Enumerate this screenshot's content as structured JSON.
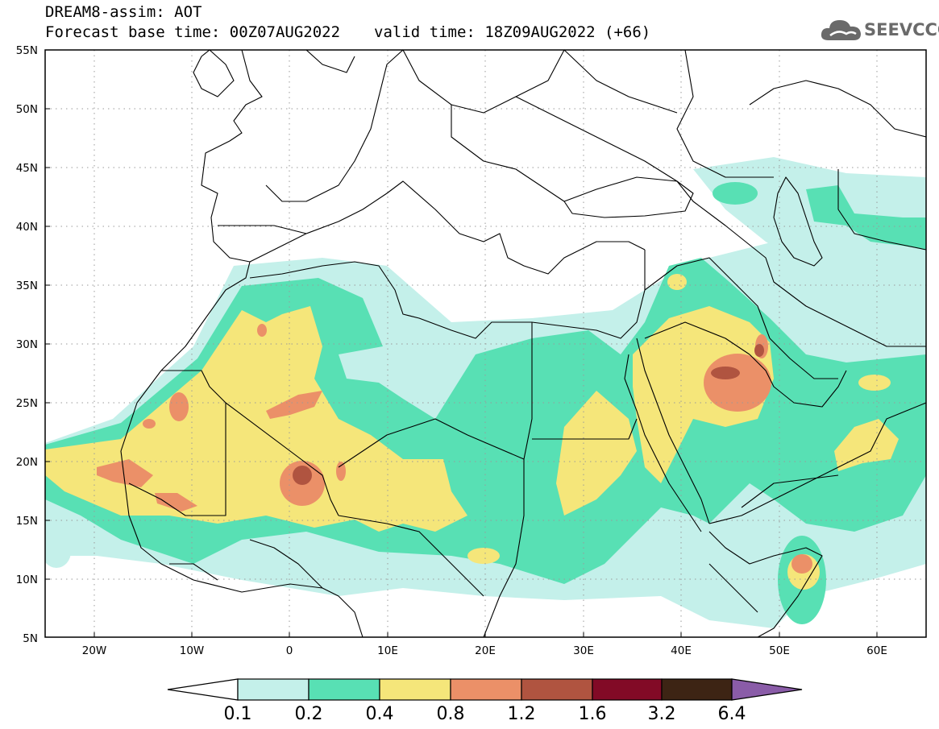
{
  "header": {
    "model_line": "DREAM8-assim: AOT",
    "base_time": "Forecast base time: 00Z07AUG2022",
    "valid_time": "valid time: 18Z09AUG2022 (+66)"
  },
  "logo": {
    "text": "SEEVCCC",
    "icon": "cloud-icon",
    "color": "#6a6a6a"
  },
  "map": {
    "lon_range": [
      -25,
      65
    ],
    "lat_range": [
      5,
      55
    ],
    "lat_labels": [
      "55N",
      "50N",
      "45N",
      "40N",
      "35N",
      "30N",
      "25N",
      "20N",
      "15N",
      "10N",
      "5N"
    ],
    "lon_labels": [
      "20W",
      "10W",
      "0",
      "10E",
      "20E",
      "30E",
      "40E",
      "50E",
      "60E"
    ],
    "grid": "dotted"
  },
  "colorbar": {
    "levels": [
      "0.1",
      "0.2",
      "0.4",
      "0.8",
      "1.2",
      "1.6",
      "3.2",
      "6.4"
    ],
    "colors": [
      "#c4f0ea",
      "#58e0b4",
      "#f5e67a",
      "#eb9068",
      "#b05440",
      "#820a26",
      "#3d2414",
      "#8a5ca8"
    ],
    "under_color": "#ffffff"
  }
}
